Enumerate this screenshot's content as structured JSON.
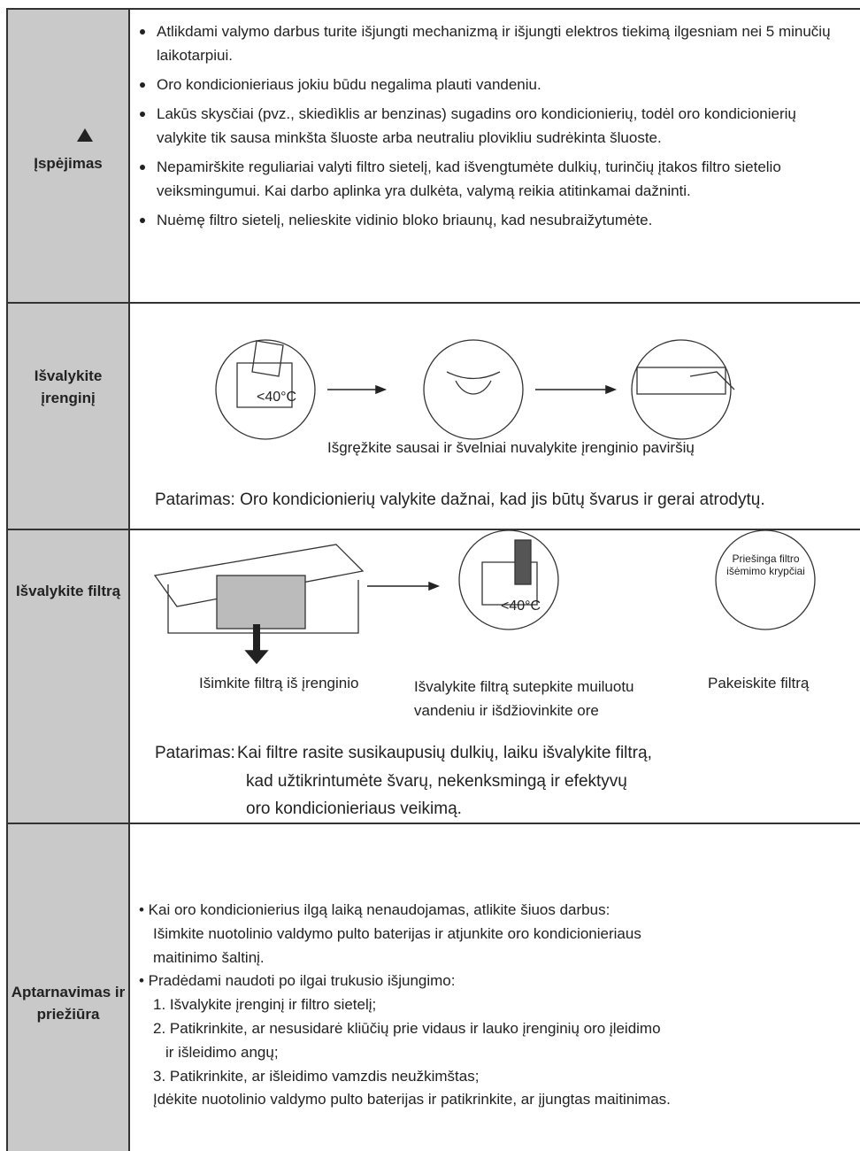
{
  "rows": [
    {
      "label": "Įspėjimas",
      "bullets": [
        "Atlikdami valymo darbus turite išjungti mechanizmą ir išjungti elektros tiekimą ilgesniam nei 5 minučių laikotarpiui.",
        "Oro kondicionieriaus jokiu būdu negalima plauti vandeniu.",
        "Lakūs skysčiai (pvz., skiedìklis ar benzinas) sugadins oro kondicionierių, todėl oro kondicionierių valykite tik sausa minkšta šluoste arba neutraliu plovikliu sudrėkinta šluoste.",
        "Nepamirškite reguliariai valyti filtro sietelį, kad išvengtumėte dulkių, turinčių įtakos filtro sietelio veiksmingumui. Kai darbo aplinka yra dulkėta, valymą reikia atitinkamai dažninti.",
        "Nuėmę filtro sietelį, nelieskite vidinio bloko briaunų, kad nesubraižytumėte."
      ]
    },
    {
      "label": "Išvalykite įrenginį",
      "temp": "<40°C",
      "caption": "Išgręžkite sausai ir švelniai nuvalykite įrenginio paviršių",
      "tip": "Patarimas: Oro kondicionierių valykite dažnai, kad jis būtų švarus ir gerai atrodytų."
    },
    {
      "label": "Išvalykite filtrą",
      "temp": "<40°C",
      "circle_text": "Priešinga filtro išėmimo krypčiai",
      "captions": [
        "Išimkite filtrą iš įrenginio",
        "Išvalykite filtrą sutepkite muiluotu vandeniu ir išdžiovinkite ore",
        "Pakeiskite filtrą"
      ],
      "tip_label": "Patarimas:",
      "tip_lines": [
        "Kai filtre rasite susikaupusių dulkių, laiku išvalykite filtrą,",
        "kad užtikrintumėte švarų, nekenksmingą ir efektyvų",
        "oro kondicionieriaus veikimą."
      ]
    },
    {
      "label": "Aptarnavimas ir priežiūra",
      "lines": [
        "• Kai oro kondicionierius ilgą laiką nenaudojamas, atlikite šiuos darbus:",
        "Išimkite nuotolinio valdymo pulto baterijas ir atjunkite oro kondicionieriaus",
        "maitinimo šaltinį.",
        "• Pradėdami naudoti po ilgai trukusio išjungimo:",
        "1. Išvalykite įrenginį ir filtro sietelį;",
        "2. Patikrinkite, ar nesusidarė kliūčių prie vidaus ir lauko įrenginių oro įleidimo",
        "ir išleidimo angų;",
        "3. Patikrinkite, ar išleidimo vamzdis neužkimštas;",
        "Įdėkite nuotolinio valdymo pulto baterijas ir patikrinkite, ar įjungtas maitinimas."
      ]
    }
  ]
}
